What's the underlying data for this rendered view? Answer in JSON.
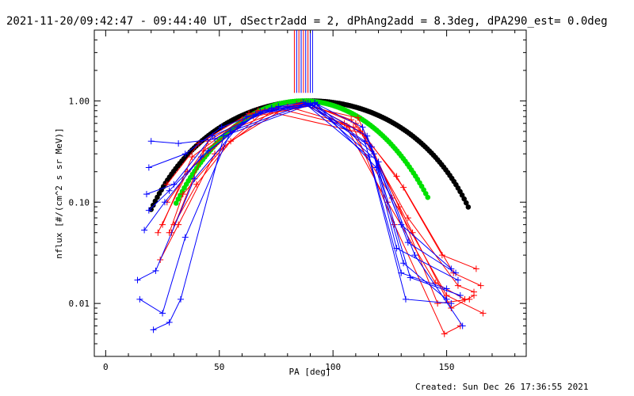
{
  "chart_data": {
    "type": "scatter",
    "title": "2021-11-20/09:42:47 - 09:44:40 UT, dSectr2add = 2, dPhAng2add = 8.3deg, dPA290_est=  0.0deg",
    "xlabel": "PA [deg]",
    "ylabel": "nflux [#/(cm^2 s sr MeV)]",
    "xlim": [
      -5,
      185
    ],
    "ylim": [
      0.003,
      5.0
    ],
    "y_scale": "log",
    "grid": false,
    "x_ticks": [
      "0",
      "50",
      "100",
      "150"
    ],
    "x_tick_values": [
      0,
      50,
      100,
      150
    ],
    "y_ticks": [
      "0.01",
      "0.10",
      "1.00"
    ],
    "y_tick_values": [
      0.01,
      0.1,
      1.0
    ],
    "colors": {
      "red": "#ff0000",
      "blue": "#0000ff",
      "black": "#000000",
      "green": "#00e000"
    },
    "vertical_markers": [
      {
        "x": 83,
        "color": "#ff0000"
      },
      {
        "x": 84,
        "color": "#0000ff"
      },
      {
        "x": 85,
        "color": "#ff0000"
      },
      {
        "x": 86,
        "color": "#0000ff"
      },
      {
        "x": 87,
        "color": "#ff0000"
      },
      {
        "x": 88,
        "color": "#0000ff"
      },
      {
        "x": 89,
        "color": "#ff0000"
      },
      {
        "x": 90,
        "color": "#0000ff"
      },
      {
        "x": 91,
        "color": "#0000ff"
      }
    ],
    "series": [
      {
        "color": "#ff0000",
        "points": [
          [
            29,
            0.05
          ],
          [
            45,
            0.4
          ],
          [
            67,
            0.8
          ],
          [
            88,
            0.95
          ],
          [
            108,
            0.65
          ],
          [
            128,
            0.18
          ],
          [
            148,
            0.03
          ],
          [
            163,
            0.022
          ]
        ]
      },
      {
        "color": "#ff0000",
        "points": [
          [
            27,
            0.15
          ],
          [
            41,
            0.38
          ],
          [
            63,
            0.75
          ],
          [
            90,
            0.92
          ],
          [
            110,
            0.6
          ],
          [
            131,
            0.14
          ],
          [
            153,
            0.02
          ],
          [
            165,
            0.015
          ]
        ]
      },
      {
        "color": "#ff0000",
        "points": [
          [
            25,
            0.06
          ],
          [
            38,
            0.28
          ],
          [
            60,
            0.65
          ],
          [
            86,
            0.96
          ],
          [
            107,
            0.55
          ],
          [
            126,
            0.11
          ],
          [
            150,
            0.012
          ],
          [
            166,
            0.008
          ]
        ]
      },
      {
        "color": "#ff0000",
        "points": [
          [
            23,
            0.05
          ],
          [
            36,
            0.2
          ],
          [
            58,
            0.55
          ],
          [
            84,
            0.93
          ],
          [
            111,
            0.68
          ],
          [
            129,
            0.09
          ],
          [
            146,
            0.01
          ],
          [
            160,
            0.011
          ]
        ]
      },
      {
        "color": "#ff0000",
        "points": [
          [
            27,
            0.1
          ],
          [
            43,
            0.32
          ],
          [
            65,
            0.7
          ],
          [
            91,
            0.9
          ],
          [
            112,
            0.5
          ],
          [
            133,
            0.07
          ],
          [
            155,
            0.015
          ],
          [
            162,
            0.013
          ]
        ]
      },
      {
        "color": "#ff0000",
        "points": [
          [
            30,
            0.06
          ],
          [
            40,
            0.15
          ],
          [
            55,
            0.4
          ],
          [
            80,
            0.88
          ],
          [
            105,
            0.6
          ],
          [
            124,
            0.1
          ],
          [
            145,
            0.016
          ],
          [
            158,
            0.011
          ]
        ]
      },
      {
        "color": "#ff0000",
        "points": [
          [
            24,
            0.027
          ],
          [
            32,
            0.06
          ],
          [
            48,
            0.3
          ],
          [
            75,
            0.85
          ],
          [
            109,
            0.55
          ],
          [
            127,
            0.06
          ],
          [
            149,
            0.005
          ],
          [
            156,
            0.006
          ]
        ]
      },
      {
        "color": "#ff0000",
        "points": [
          [
            28,
            0.05
          ],
          [
            34,
            0.12
          ],
          [
            52,
            0.35
          ],
          [
            70,
            0.8
          ],
          [
            113,
            0.48
          ],
          [
            135,
            0.05
          ],
          [
            152,
            0.009
          ],
          [
            162,
            0.012
          ]
        ]
      },
      {
        "color": "#0000ff",
        "points": [
          [
            20,
            0.4
          ],
          [
            32,
            0.38
          ],
          [
            48,
            0.42
          ],
          [
            70,
            0.8
          ],
          [
            92,
            0.95
          ],
          [
            113,
            0.55
          ],
          [
            130,
            0.06
          ],
          [
            152,
            0.022
          ]
        ]
      },
      {
        "color": "#0000ff",
        "points": [
          [
            19,
            0.22
          ],
          [
            35,
            0.3
          ],
          [
            51,
            0.55
          ],
          [
            73,
            0.85
          ],
          [
            90,
            0.93
          ],
          [
            115,
            0.45
          ],
          [
            133,
            0.04
          ],
          [
            154,
            0.02
          ]
        ]
      },
      {
        "color": "#0000ff",
        "points": [
          [
            18,
            0.12
          ],
          [
            30,
            0.15
          ],
          [
            47,
            0.45
          ],
          [
            76,
            0.88
          ],
          [
            87,
            0.97
          ],
          [
            117,
            0.35
          ],
          [
            131,
            0.025
          ],
          [
            150,
            0.011
          ]
        ]
      },
      {
        "color": "#0000ff",
        "points": [
          [
            19,
            0.083
          ],
          [
            28,
            0.13
          ],
          [
            45,
            0.32
          ],
          [
            68,
            0.78
          ],
          [
            93,
            0.92
          ],
          [
            118,
            0.3
          ],
          [
            134,
            0.018
          ],
          [
            156,
            0.012
          ]
        ]
      },
      {
        "color": "#0000ff",
        "points": [
          [
            17,
            0.053
          ],
          [
            26,
            0.1
          ],
          [
            42,
            0.28
          ],
          [
            66,
            0.74
          ],
          [
            91,
            0.9
          ],
          [
            120,
            0.25
          ],
          [
            136,
            0.03
          ],
          [
            157,
            0.006
          ]
        ]
      },
      {
        "color": "#0000ff",
        "points": [
          [
            14,
            0.017
          ],
          [
            22,
            0.021
          ],
          [
            39,
            0.17
          ],
          [
            62,
            0.7
          ],
          [
            89,
            0.95
          ],
          [
            114,
            0.4
          ],
          [
            132,
            0.011
          ],
          [
            152,
            0.01
          ]
        ]
      },
      {
        "color": "#0000ff",
        "points": [
          [
            15,
            0.011
          ],
          [
            25,
            0.008
          ],
          [
            35,
            0.045
          ],
          [
            55,
            0.5
          ],
          [
            88,
            0.93
          ],
          [
            116,
            0.28
          ],
          [
            130,
            0.02
          ],
          [
            150,
            0.014
          ]
        ]
      },
      {
        "color": "#0000ff",
        "points": [
          [
            21,
            0.0055
          ],
          [
            28,
            0.0065
          ],
          [
            33,
            0.011
          ],
          [
            52,
            0.45
          ],
          [
            92,
            0.96
          ],
          [
            119,
            0.22
          ],
          [
            128,
            0.035
          ],
          [
            155,
            0.017
          ]
        ]
      }
    ],
    "curves": [
      {
        "color": "#000000",
        "amplitude": 1.0,
        "center": 90,
        "exponent": 2.3,
        "x_range": [
          20,
          160
        ]
      },
      {
        "color": "#00e000",
        "amplitude": 1.0,
        "center": 87,
        "exponent": 4.0,
        "x_range": [
          31,
          142
        ]
      }
    ]
  },
  "footer": {
    "created": "Created: Sun Dec 26 17:36:55 2021"
  }
}
